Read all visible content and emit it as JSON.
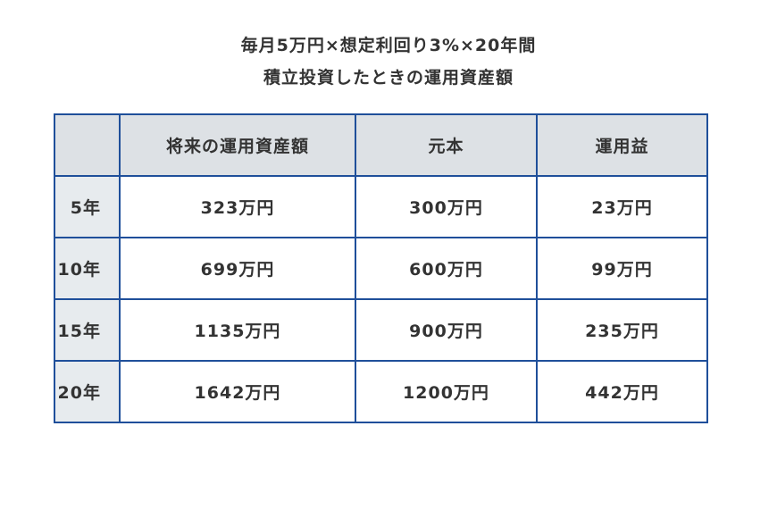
{
  "title": {
    "line1": "毎月5万円×想定利回り3%×20年間",
    "line2": "積立投資したときの運用資産額"
  },
  "table": {
    "headers": [
      "",
      "将来の運用資産額",
      "元本",
      "運用益"
    ],
    "rows": [
      {
        "label": "5年",
        "cells": [
          "323万円",
          "300万円",
          "23万円"
        ]
      },
      {
        "label": "10年",
        "cells": [
          "699万円",
          "600万円",
          "99万円"
        ]
      },
      {
        "label": "15年",
        "cells": [
          "1135万円",
          "900万円",
          "235万円"
        ]
      },
      {
        "label": "20年",
        "cells": [
          "1642万円",
          "1200万円",
          "442万円"
        ]
      }
    ]
  },
  "colors": {
    "border": "#1f4f9a",
    "header_bg": "#dde1e5",
    "row_header_bg": "#e7ebee"
  }
}
